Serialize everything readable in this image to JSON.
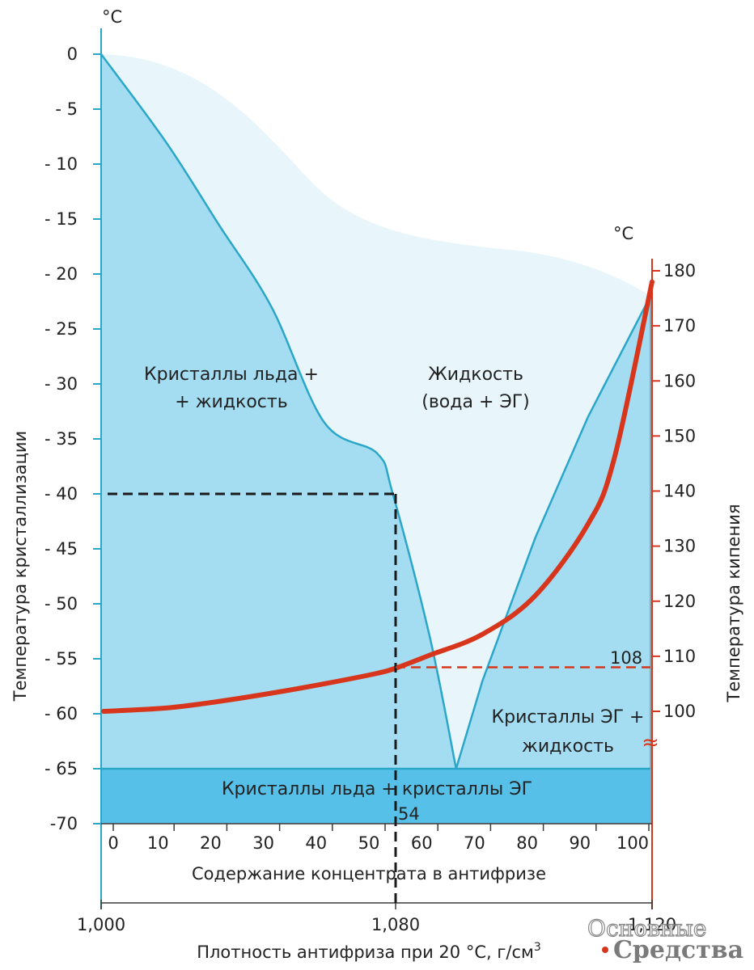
{
  "chart_data": {
    "type": "line",
    "y_left": {
      "unit": "°C",
      "label": "Температура кристаллизации",
      "ticks": [
        0,
        -5,
        -10,
        -15,
        -20,
        -25,
        -30,
        -35,
        -40,
        -45,
        -50,
        -55,
        -60,
        -65,
        -70
      ],
      "tick_labels": [
        "0",
        "- 5",
        "- 10",
        "- 15",
        "- 20",
        "- 25",
        "- 30",
        "- 35",
        "- 40",
        "- 45",
        "- 50",
        "- 55",
        "- 60",
        "- 65",
        "-70"
      ],
      "range": [
        -70,
        0
      ]
    },
    "y_right": {
      "unit": "°C",
      "label": "Температура кипения",
      "ticks": [
        100,
        110,
        120,
        130,
        140,
        150,
        160,
        170,
        180
      ],
      "tick_labels": [
        "100",
        "110",
        "120",
        "130",
        "140",
        "150",
        "160",
        "170",
        "180"
      ],
      "range": [
        100,
        180
      ],
      "break_mark": "≈"
    },
    "x_concentration": {
      "label": "Содержание концентрата в антифризе",
      "ticks": [
        0,
        10,
        20,
        30,
        40,
        50,
        60,
        70,
        80,
        90,
        100
      ],
      "tick_labels": [
        "0",
        "10",
        "20",
        "30",
        "40",
        "50",
        "60",
        "70",
        "80",
        "90",
        "100"
      ],
      "range": [
        0,
        100
      ]
    },
    "x_density": {
      "label": "Плотность антифриза при 20 °C, г/см",
      "label_sup": "3",
      "ticks": [
        1.0,
        1.08,
        1.12
      ],
      "tick_labels": [
        "1,000",
        "1,080",
        "1,120"
      ]
    },
    "series": [
      {
        "axis": "left",
        "x": [
          0,
          10,
          20,
          30,
          40,
          50,
          53,
          60,
          65
        ],
        "y": [
          0,
          -8,
          -15.5,
          -23,
          -33.5,
          -36.3,
          -40,
          -53,
          -65
        ]
      },
      {
        "axis": "left",
        "x": [
          65,
          70,
          80,
          90,
          100
        ],
        "y": [
          -65,
          -57,
          -44,
          -33,
          -22
        ]
      },
      {
        "axis": "right",
        "x": [
          0,
          10,
          20,
          30,
          40,
          50,
          54,
          60,
          70,
          80,
          90,
          95,
          100
        ],
        "y": [
          100,
          100.6,
          101.8,
          103.3,
          105,
          106.9,
          108,
          110.2,
          114,
          121,
          134,
          146,
          178
        ]
      }
    ],
    "reference_lines": [
      {
        "axis": "left",
        "from_concentration": 0,
        "to_concentration": 53,
        "y": -40,
        "color": "#1a1a1a"
      },
      {
        "axis": "concentration",
        "x": 53,
        "color": "#1a1a1a"
      },
      {
        "axis": "right",
        "from_concentration": 53,
        "to_concentration": 100,
        "y": 108,
        "color": "#d8361c"
      }
    ],
    "annotations": {
      "marker_54": "54",
      "marker_108": "108"
    },
    "regions": {
      "ice_liquid": [
        "Кристаллы льда +",
        "+ жидкость"
      ],
      "liquid": [
        "Жидкость",
        "(вода + ЭГ)"
      ],
      "eg_liquid": [
        "Кристаллы ЭГ +",
        "жидкость"
      ],
      "ice_eg": "Кристаллы льда + кристаллы ЭГ"
    },
    "colors": {
      "freezing_line": "#2aa7c8",
      "boiling_line": "#d8361c",
      "solid_fill": "#a4dcf1",
      "liquid_fill": "#e8f6fc",
      "eutectic_fill": "#56c0e8",
      "reference_dash": "#1a1a1a",
      "right_axis": "#d8361c",
      "left_axis": "#2aa7c8"
    }
  },
  "watermark": {
    "line1": "Основные",
    "line2": "Средства"
  }
}
